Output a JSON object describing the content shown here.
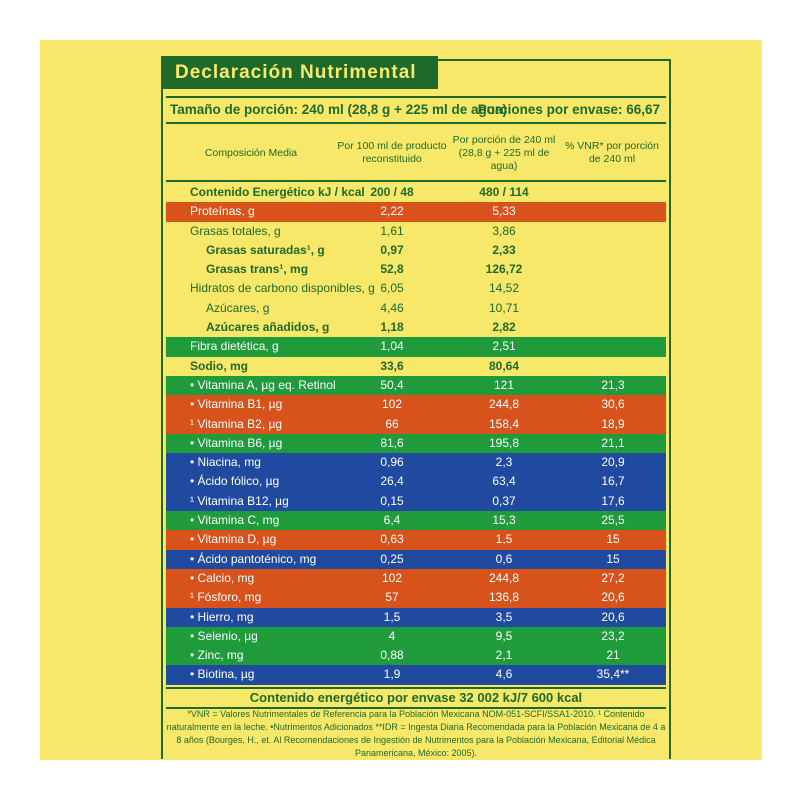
{
  "title": "Declaración Nutrimental",
  "serving": {
    "size": "Tamaño de porción: 240 ml (28,8 g + 225 ml de agua)",
    "portions": "Porciones por envase: 66,67"
  },
  "headers": {
    "col0": "Composición Media",
    "col1": "Por 100 ml de producto reconstituido",
    "col2": "Por porción de 240 ml (28,8 g + 225 ml de agua)",
    "col3": "% VNR* por porción de 240 ml"
  },
  "rows": [
    {
      "name": "Contenido Energético kJ / kcal",
      "v1": "200 / 48",
      "v2": "480 / 114",
      "v3": "",
      "style": "yellow",
      "bold": true
    },
    {
      "name": "Proteínas, g",
      "v1": "2,22",
      "v2": "5,33",
      "v3": "",
      "style": "orange"
    },
    {
      "name": "Grasas totales, g",
      "v1": "1,61",
      "v2": "3,86",
      "v3": "",
      "style": "yellow"
    },
    {
      "name": "Grasas saturadas¹, g",
      "v1": "0,97",
      "v2": "2,33",
      "v3": "",
      "style": "yellow",
      "bold": true,
      "indent": true
    },
    {
      "name": "Grasas trans¹, mg",
      "v1": "52,8",
      "v2": "126,72",
      "v3": "",
      "style": "yellow",
      "bold": true,
      "indent": true
    },
    {
      "name": "Hidratos de carbono disponibles, g",
      "v1": "6,05",
      "v2": "14,52",
      "v3": "",
      "style": "yellow"
    },
    {
      "name": "Azúcares, g",
      "v1": "4,46",
      "v2": "10,71",
      "v3": "",
      "style": "yellow",
      "indent": true
    },
    {
      "name": "Azúcares añadidos, g",
      "v1": "1,18",
      "v2": "2,82",
      "v3": "",
      "style": "yellow",
      "bold": true,
      "indent": true
    },
    {
      "name": "Fibra dietética, g",
      "v1": "1,04",
      "v2": "2,51",
      "v3": "",
      "style": "green"
    },
    {
      "name": "Sodio, mg",
      "v1": "33,6",
      "v2": "80,64",
      "v3": "",
      "style": "yellow",
      "bold": true
    },
    {
      "name": "• Vitamina A, µg eq. Retinol",
      "v1": "50,4",
      "v2": "121",
      "v3": "21,3",
      "style": "green"
    },
    {
      "name": "• Vitamina B1, µg",
      "v1": "102",
      "v2": "244,8",
      "v3": "30,6",
      "style": "orange"
    },
    {
      "name": "¹ Vitamina B2, µg",
      "v1": "66",
      "v2": "158,4",
      "v3": "18,9",
      "style": "orange"
    },
    {
      "name": "• Vitamina B6, µg",
      "v1": "81,6",
      "v2": "195,8",
      "v3": "21,1",
      "style": "green"
    },
    {
      "name": "• Niacina, mg",
      "v1": "0,96",
      "v2": "2,3",
      "v3": "20,9",
      "style": "blue"
    },
    {
      "name": "• Ácido fólico, µg",
      "v1": "26,4",
      "v2": "63,4",
      "v3": "16,7",
      "style": "blue"
    },
    {
      "name": "¹ Vitamina B12, µg",
      "v1": "0,15",
      "v2": "0,37",
      "v3": "17,6",
      "style": "blue"
    },
    {
      "name": "• Vitamina C, mg",
      "v1": "6,4",
      "v2": "15,3",
      "v3": "25,5",
      "style": "green"
    },
    {
      "name": "• Vitamina D, µg",
      "v1": "0,63",
      "v2": "1,5",
      "v3": "15",
      "style": "orange"
    },
    {
      "name": "• Ácido pantoténico, mg",
      "v1": "0,25",
      "v2": "0,6",
      "v3": "15",
      "style": "blue"
    },
    {
      "name": "• Calcio, mg",
      "v1": "102",
      "v2": "244,8",
      "v3": "27,2",
      "style": "orange"
    },
    {
      "name": "¹ Fósforo, mg",
      "v1": "57",
      "v2": "136,8",
      "v3": "20,6",
      "style": "orange"
    },
    {
      "name": "• Hierro, mg",
      "v1": "1,5",
      "v2": "3,5",
      "v3": "20,6",
      "style": "blue"
    },
    {
      "name": "• Selenio, µg",
      "v1": "4",
      "v2": "9,5",
      "v3": "23,2",
      "style": "green"
    },
    {
      "name": "• Zinc, mg",
      "v1": "0,88",
      "v2": "2,1",
      "v3": "21",
      "style": "green"
    },
    {
      "name": "• Biotina, µg",
      "v1": "1,9",
      "v2": "4,6",
      "v3": "35,4**",
      "style": "blue"
    }
  ],
  "energy_total": "Contenido energético por envase 32 002 kJ/7 600 kcal",
  "footnote": "*VNR = Valores Nutrimentales de Referencia para la Población Mexicana NOM-051-SCFI/SSA1-2010. ¹ Contenido naturalmente en la leche. •Nutrimentos Adicionados   **IDR = Ingesta Diaria Recomendada para la Población Mexicana de 4 a 8 años (Bourges, H., et. Al Recomendaciones de Ingestión de Nutrimentos para la Población Mexicana, Editorial Médica Panamericana, México: 2005).",
  "colors": {
    "background": "#f7e869",
    "dark_green": "#1d6a2b",
    "orange": "#d8521c",
    "green": "#1f9b3c",
    "blue": "#1f4aa0"
  }
}
